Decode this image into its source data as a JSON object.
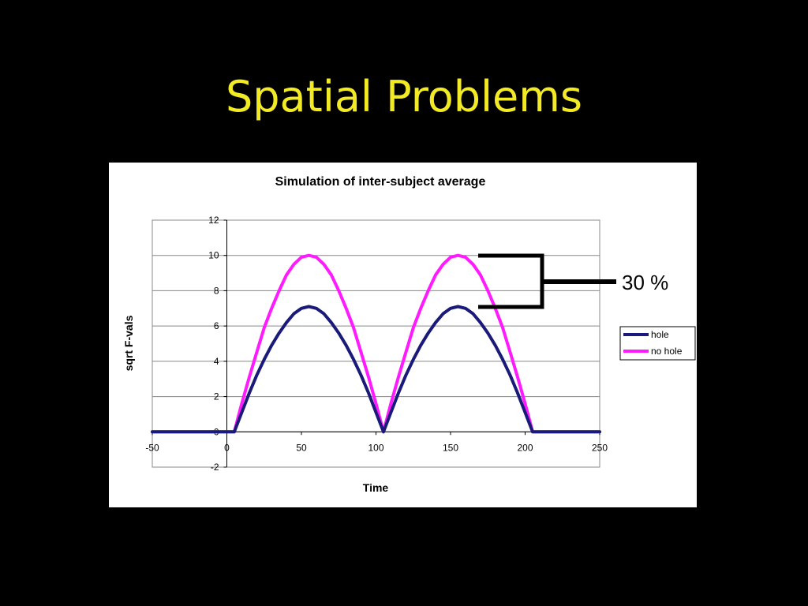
{
  "slide": {
    "title": "Spatial Problems"
  },
  "annotation": {
    "label": "30 %"
  },
  "colors": {
    "title": "#f2ea24",
    "background": "#000000",
    "hole": "#1a1a7a",
    "no_hole": "#ff1aff"
  },
  "chart_data": {
    "type": "line",
    "title": "Simulation of inter-subject average",
    "xlabel": "Time",
    "ylabel": "sqrt F-vals",
    "xlim": [
      -50,
      250
    ],
    "ylim": [
      -2,
      12
    ],
    "x_ticks": [
      -50,
      0,
      50,
      100,
      150,
      200,
      250
    ],
    "y_ticks": [
      -2,
      0,
      2,
      4,
      6,
      8,
      10,
      12
    ],
    "grid": "horizontal",
    "legend_position": "right",
    "series": [
      {
        "name": "hole",
        "color": "#1a1a7a",
        "x": [
          -50,
          0,
          5,
          10,
          15,
          20,
          25,
          30,
          35,
          40,
          45,
          50,
          55,
          60,
          65,
          70,
          75,
          80,
          85,
          90,
          95,
          100,
          105,
          110,
          115,
          120,
          125,
          130,
          135,
          140,
          145,
          150,
          155,
          160,
          165,
          170,
          175,
          180,
          185,
          190,
          195,
          200,
          205,
          250
        ],
        "y": [
          0,
          0,
          0,
          1.1,
          2.2,
          3.2,
          4.1,
          4.9,
          5.6,
          6.2,
          6.7,
          7.0,
          7.1,
          7.0,
          6.7,
          6.2,
          5.6,
          4.9,
          4.1,
          3.2,
          2.2,
          1.1,
          0,
          1.1,
          2.2,
          3.2,
          4.1,
          4.9,
          5.6,
          6.2,
          6.7,
          7.0,
          7.1,
          7.0,
          6.7,
          6.2,
          5.6,
          4.9,
          4.1,
          3.2,
          2.2,
          1.1,
          0,
          0
        ]
      },
      {
        "name": "no hole",
        "color": "#ff1aff",
        "x": [
          -50,
          0,
          5,
          10,
          15,
          20,
          25,
          30,
          35,
          40,
          45,
          50,
          55,
          60,
          65,
          70,
          75,
          80,
          85,
          90,
          95,
          100,
          105,
          110,
          115,
          120,
          125,
          130,
          135,
          140,
          145,
          150,
          155,
          160,
          165,
          170,
          175,
          180,
          185,
          190,
          195,
          200,
          205,
          250
        ],
        "y": [
          0,
          0,
          0,
          1.6,
          3.1,
          4.5,
          5.9,
          7.0,
          8.0,
          8.9,
          9.5,
          9.9,
          10.0,
          9.9,
          9.5,
          8.9,
          8.0,
          7.0,
          5.9,
          4.5,
          3.1,
          1.6,
          0,
          1.6,
          3.1,
          4.5,
          5.9,
          7.0,
          8.0,
          8.9,
          9.5,
          9.9,
          10.0,
          9.9,
          9.5,
          8.9,
          8.0,
          7.0,
          5.9,
          4.5,
          3.1,
          1.6,
          0,
          0
        ]
      }
    ]
  }
}
